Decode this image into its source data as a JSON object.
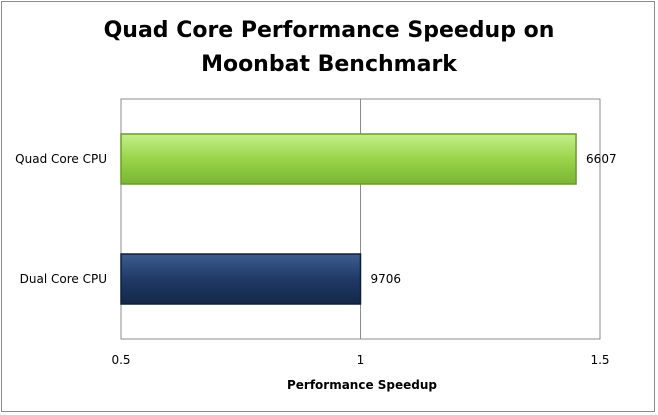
{
  "chart_data": {
    "type": "bar",
    "orientation": "horizontal",
    "title_lines": [
      "Quad Core Performance Speedup on",
      "Moonbat Benchmark"
    ],
    "xlabel": "Performance Speedup",
    "ylabel": "",
    "xlim": [
      0.5,
      1.5
    ],
    "x_ticks": [
      "0.5",
      "1",
      "1.5"
    ],
    "x_tick_values": [
      0.5,
      1,
      1.5
    ],
    "grid": true,
    "categories": [
      "Quad Core CPU",
      "Dual Core CPU"
    ],
    "values": [
      1.45,
      1.0
    ],
    "data_labels": [
      "6607",
      "9706"
    ],
    "colors": [
      "#99d44a",
      "#1f3a66"
    ]
  }
}
